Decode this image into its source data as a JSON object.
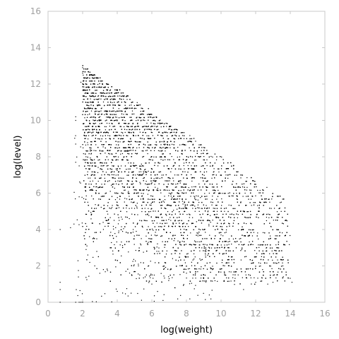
{
  "chart_data": {
    "type": "scatter",
    "title": "",
    "xlabel": "log(weight)",
    "ylabel": "log(level)",
    "xlim": [
      0,
      16
    ],
    "ylim": [
      0,
      16
    ],
    "xticks": [
      0,
      2,
      4,
      6,
      8,
      10,
      12,
      14,
      16
    ],
    "yticks": [
      0,
      2,
      4,
      6,
      8,
      10,
      12,
      14,
      16
    ],
    "grid": false,
    "legend": "none",
    "point_color": "#000000",
    "density_note": "dense triangular cloud bounded above by log(level) ≈ 14.2 − 0.62·log(weight); approximately sampled below",
    "series": [
      {
        "points": [
          [
            0.7,
            1.1
          ],
          [
            0.7,
            0.7
          ],
          [
            0.7,
            0.0
          ],
          [
            0.7,
            4.0
          ],
          [
            1.3,
            4.1
          ],
          [
            1.5,
            4.3
          ],
          [
            1.6,
            0.0
          ],
          [
            1.8,
            0.0
          ],
          [
            1.9,
            0.0
          ],
          [
            2.0,
            0.0
          ],
          [
            1.9,
            12.1
          ],
          [
            2.0,
            12.6
          ],
          [
            2.0,
            12.9
          ],
          [
            1.6,
            10.2
          ],
          [
            1.6,
            10.0
          ],
          [
            1.6,
            7.7
          ],
          [
            1.8,
            7.5
          ],
          [
            1.6,
            8.7
          ],
          [
            1.8,
            5.8
          ],
          [
            2.3,
            5.5
          ],
          [
            2.2,
            2.9
          ],
          [
            2.3,
            2.6
          ],
          [
            2.5,
            4.8
          ],
          [
            2.7,
            2.0
          ],
          [
            3.2,
            1.8
          ],
          [
            4.5,
            1.7
          ],
          [
            5.3,
            1.5
          ],
          [
            4.0,
            0.6
          ],
          [
            4.8,
            0.5
          ],
          [
            6.0,
            1.0
          ],
          [
            7.0,
            1.3
          ],
          [
            8.0,
            1.6
          ],
          [
            9.5,
            1.8
          ],
          [
            10.2,
            1.6
          ],
          [
            11.3,
            0.7
          ],
          [
            12.0,
            1.1
          ],
          [
            13.0,
            1.1
          ],
          [
            13.6,
            1.4
          ],
          [
            14.1,
            1.1
          ],
          [
            12.4,
            1.8
          ],
          [
            11.8,
            2.3
          ],
          [
            11.2,
            2.9
          ],
          [
            10.6,
            3.2
          ],
          [
            10.0,
            3.7
          ],
          [
            9.3,
            4.2
          ],
          [
            8.5,
            5.0
          ],
          [
            7.8,
            5.4
          ],
          [
            7.0,
            6.0
          ],
          [
            6.2,
            7.0
          ],
          [
            5.4,
            7.6
          ],
          [
            4.6,
            8.3
          ],
          [
            3.8,
            9.0
          ],
          [
            3.0,
            10.2
          ],
          [
            2.5,
            11.5
          ],
          [
            2.8,
            9.5
          ],
          [
            3.3,
            8.2
          ],
          [
            3.1,
            7.0
          ],
          [
            2.9,
            6.3
          ],
          [
            3.6,
            6.1
          ],
          [
            4.1,
            5.2
          ],
          [
            4.7,
            4.6
          ],
          [
            5.1,
            3.9
          ],
          [
            5.8,
            3.3
          ],
          [
            6.4,
            2.8
          ],
          [
            7.2,
            2.4
          ],
          [
            8.3,
            2.2
          ],
          [
            9.1,
            2.6
          ],
          [
            9.8,
            3.0
          ]
        ]
      }
    ]
  }
}
